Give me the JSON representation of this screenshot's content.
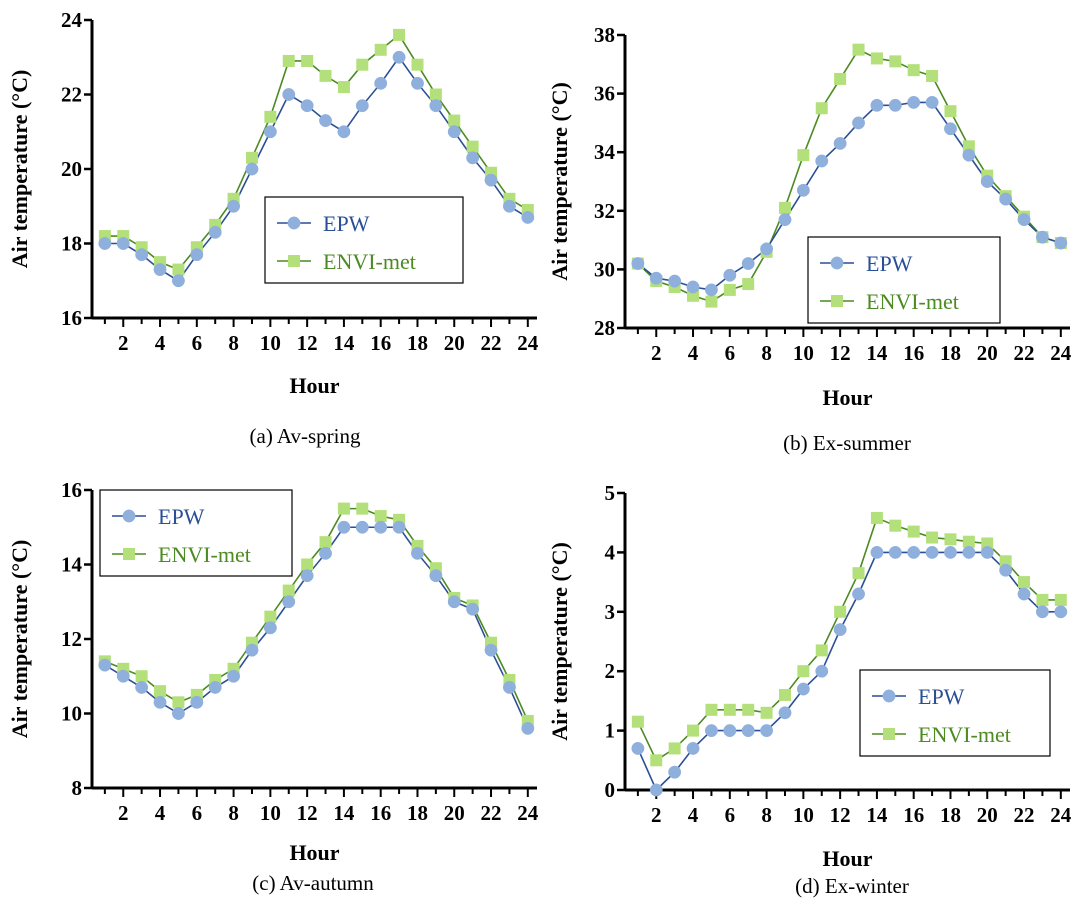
{
  "colors": {
    "epw_line": "#2a4f96",
    "epw_marker": "#8fb0dc",
    "envi_line": "#4c8a22",
    "envi_marker": "#b3e07a",
    "epw_text": "#2a4f96",
    "envi_text": "#4c8a22"
  },
  "chart_data": [
    {
      "type": "line",
      "caption": "(a) Av-spring",
      "xlabel": "Hour",
      "ylabel": "Air temperature (°C)",
      "xlim": [
        0.3,
        24.5
      ],
      "ylim": [
        16,
        24
      ],
      "xticks": [
        2,
        4,
        6,
        8,
        10,
        12,
        14,
        16,
        18,
        20,
        22,
        24
      ],
      "yticks": [
        16,
        18,
        20,
        22,
        24
      ],
      "legend_position": "center",
      "x": [
        1,
        2,
        3,
        4,
        5,
        6,
        7,
        8,
        9,
        10,
        11,
        12,
        13,
        14,
        15,
        16,
        17,
        18,
        19,
        20,
        21,
        22,
        23,
        24
      ],
      "series": [
        {
          "name": "EPW",
          "values": [
            18.0,
            18.0,
            17.7,
            17.3,
            17.0,
            17.7,
            18.3,
            19.0,
            20.0,
            21.0,
            22.0,
            21.7,
            21.3,
            21.0,
            21.7,
            22.3,
            23.0,
            22.3,
            21.7,
            21.0,
            20.3,
            19.7,
            19.0,
            18.7
          ]
        },
        {
          "name": "ENVI-met",
          "values": [
            18.2,
            18.2,
            17.9,
            17.5,
            17.3,
            17.9,
            18.5,
            19.2,
            20.3,
            21.4,
            22.9,
            22.9,
            22.5,
            22.2,
            22.8,
            23.2,
            23.6,
            22.8,
            22.0,
            21.3,
            20.6,
            19.9,
            19.2,
            18.9
          ]
        }
      ]
    },
    {
      "type": "line",
      "caption": "(b) Ex-summer",
      "xlabel": "Hour",
      "ylabel": "Air temperature (°C)",
      "xlim": [
        0.3,
        24.5
      ],
      "ylim": [
        28,
        38
      ],
      "xticks": [
        2,
        4,
        6,
        8,
        10,
        12,
        14,
        16,
        18,
        20,
        22,
        24
      ],
      "yticks": [
        28,
        30,
        32,
        34,
        36,
        38
      ],
      "legend_position": "bottom-left",
      "x": [
        1,
        2,
        3,
        4,
        5,
        6,
        7,
        8,
        9,
        10,
        11,
        12,
        13,
        14,
        15,
        16,
        17,
        18,
        19,
        20,
        21,
        22,
        23,
        24
      ],
      "series": [
        {
          "name": "EPW",
          "values": [
            30.2,
            29.7,
            29.6,
            29.4,
            29.3,
            29.8,
            30.2,
            30.7,
            31.7,
            32.7,
            33.7,
            34.3,
            35.0,
            35.6,
            35.6,
            35.7,
            35.7,
            34.8,
            33.9,
            33.0,
            32.4,
            31.7,
            31.1,
            30.9
          ]
        },
        {
          "name": "ENVI-met",
          "values": [
            30.2,
            29.6,
            29.4,
            29.1,
            28.9,
            29.3,
            29.5,
            30.6,
            32.1,
            33.9,
            35.5,
            36.5,
            37.5,
            37.2,
            37.1,
            36.8,
            36.6,
            35.4,
            34.2,
            33.2,
            32.5,
            31.8,
            31.1,
            30.9
          ]
        }
      ]
    },
    {
      "type": "line",
      "caption": "(c) Av-autumn",
      "xlabel": "Hour",
      "ylabel": "Air temperature (°C)",
      "xlim": [
        0.3,
        24.5
      ],
      "ylim": [
        8,
        16
      ],
      "xticks": [
        2,
        4,
        6,
        8,
        10,
        12,
        14,
        16,
        18,
        20,
        22,
        24
      ],
      "yticks": [
        8,
        10,
        12,
        14,
        16
      ],
      "legend_position": "top-left",
      "x": [
        1,
        2,
        3,
        4,
        5,
        6,
        7,
        8,
        9,
        10,
        11,
        12,
        13,
        14,
        15,
        16,
        17,
        18,
        19,
        20,
        21,
        22,
        23,
        24
      ],
      "series": [
        {
          "name": "EPW",
          "values": [
            11.3,
            11.0,
            10.7,
            10.3,
            10.0,
            10.3,
            10.7,
            11.0,
            11.7,
            12.3,
            13.0,
            13.7,
            14.3,
            15.0,
            15.0,
            15.0,
            15.0,
            14.3,
            13.7,
            13.0,
            12.8,
            11.7,
            10.7,
            9.6
          ]
        },
        {
          "name": "ENVI-met",
          "values": [
            11.4,
            11.2,
            11.0,
            10.6,
            10.3,
            10.5,
            10.9,
            11.2,
            11.9,
            12.6,
            13.3,
            14.0,
            14.6,
            15.5,
            15.5,
            15.3,
            15.2,
            14.5,
            13.9,
            13.1,
            12.9,
            11.9,
            10.9,
            9.8
          ]
        }
      ]
    },
    {
      "type": "line",
      "caption": "(d) Ex-winter",
      "xlabel": "Hour",
      "ylabel": "Air temperature (°C)",
      "xlim": [
        0.3,
        24.5
      ],
      "ylim": [
        0,
        5
      ],
      "xticks": [
        2,
        4,
        6,
        8,
        10,
        12,
        14,
        16,
        18,
        20,
        22,
        24
      ],
      "yticks": [
        0,
        1,
        2,
        3,
        4,
        5
      ],
      "legend_position": "center-right",
      "x": [
        1,
        2,
        3,
        4,
        5,
        6,
        7,
        8,
        9,
        10,
        11,
        12,
        13,
        14,
        15,
        16,
        17,
        18,
        19,
        20,
        21,
        22,
        23,
        24
      ],
      "series": [
        {
          "name": "EPW",
          "values": [
            0.7,
            0.0,
            0.3,
            0.7,
            1.0,
            1.0,
            1.0,
            1.0,
            1.3,
            1.7,
            2.0,
            2.7,
            3.3,
            4.0,
            4.0,
            4.0,
            4.0,
            4.0,
            4.0,
            4.0,
            3.7,
            3.3,
            3.0,
            3.0
          ]
        },
        {
          "name": "ENVI-met",
          "values": [
            1.15,
            0.5,
            0.7,
            1.0,
            1.35,
            1.35,
            1.35,
            1.3,
            1.6,
            2.0,
            2.35,
            3.0,
            3.65,
            4.58,
            4.45,
            4.35,
            4.25,
            4.22,
            4.18,
            4.15,
            3.85,
            3.5,
            3.2,
            3.2
          ]
        }
      ]
    }
  ]
}
